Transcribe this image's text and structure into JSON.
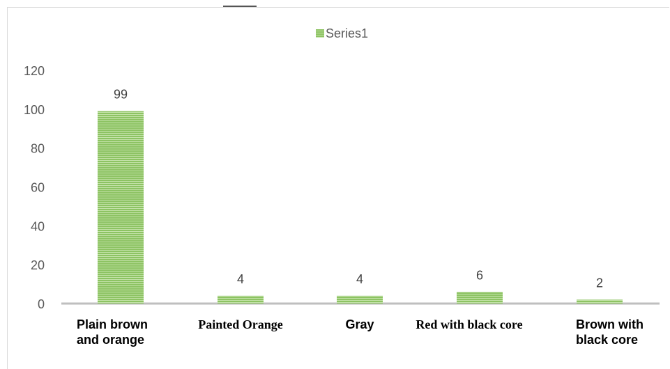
{
  "chart_data": {
    "type": "bar",
    "categories": [
      "Plain brown and orange",
      "Painted Orange",
      "Gray",
      "Red with black core",
      "Brown with black core"
    ],
    "series": [
      {
        "name": "Series1",
        "values": [
          99,
          4,
          4,
          6,
          2
        ],
        "color": "#8dc363"
      }
    ],
    "title": "",
    "xlabel": "",
    "ylabel": "",
    "ylim": [
      0,
      120
    ],
    "yticks": [
      0,
      20,
      40,
      60,
      80,
      100,
      120
    ],
    "legend": "top-center",
    "grid": false,
    "data_labels": true
  }
}
